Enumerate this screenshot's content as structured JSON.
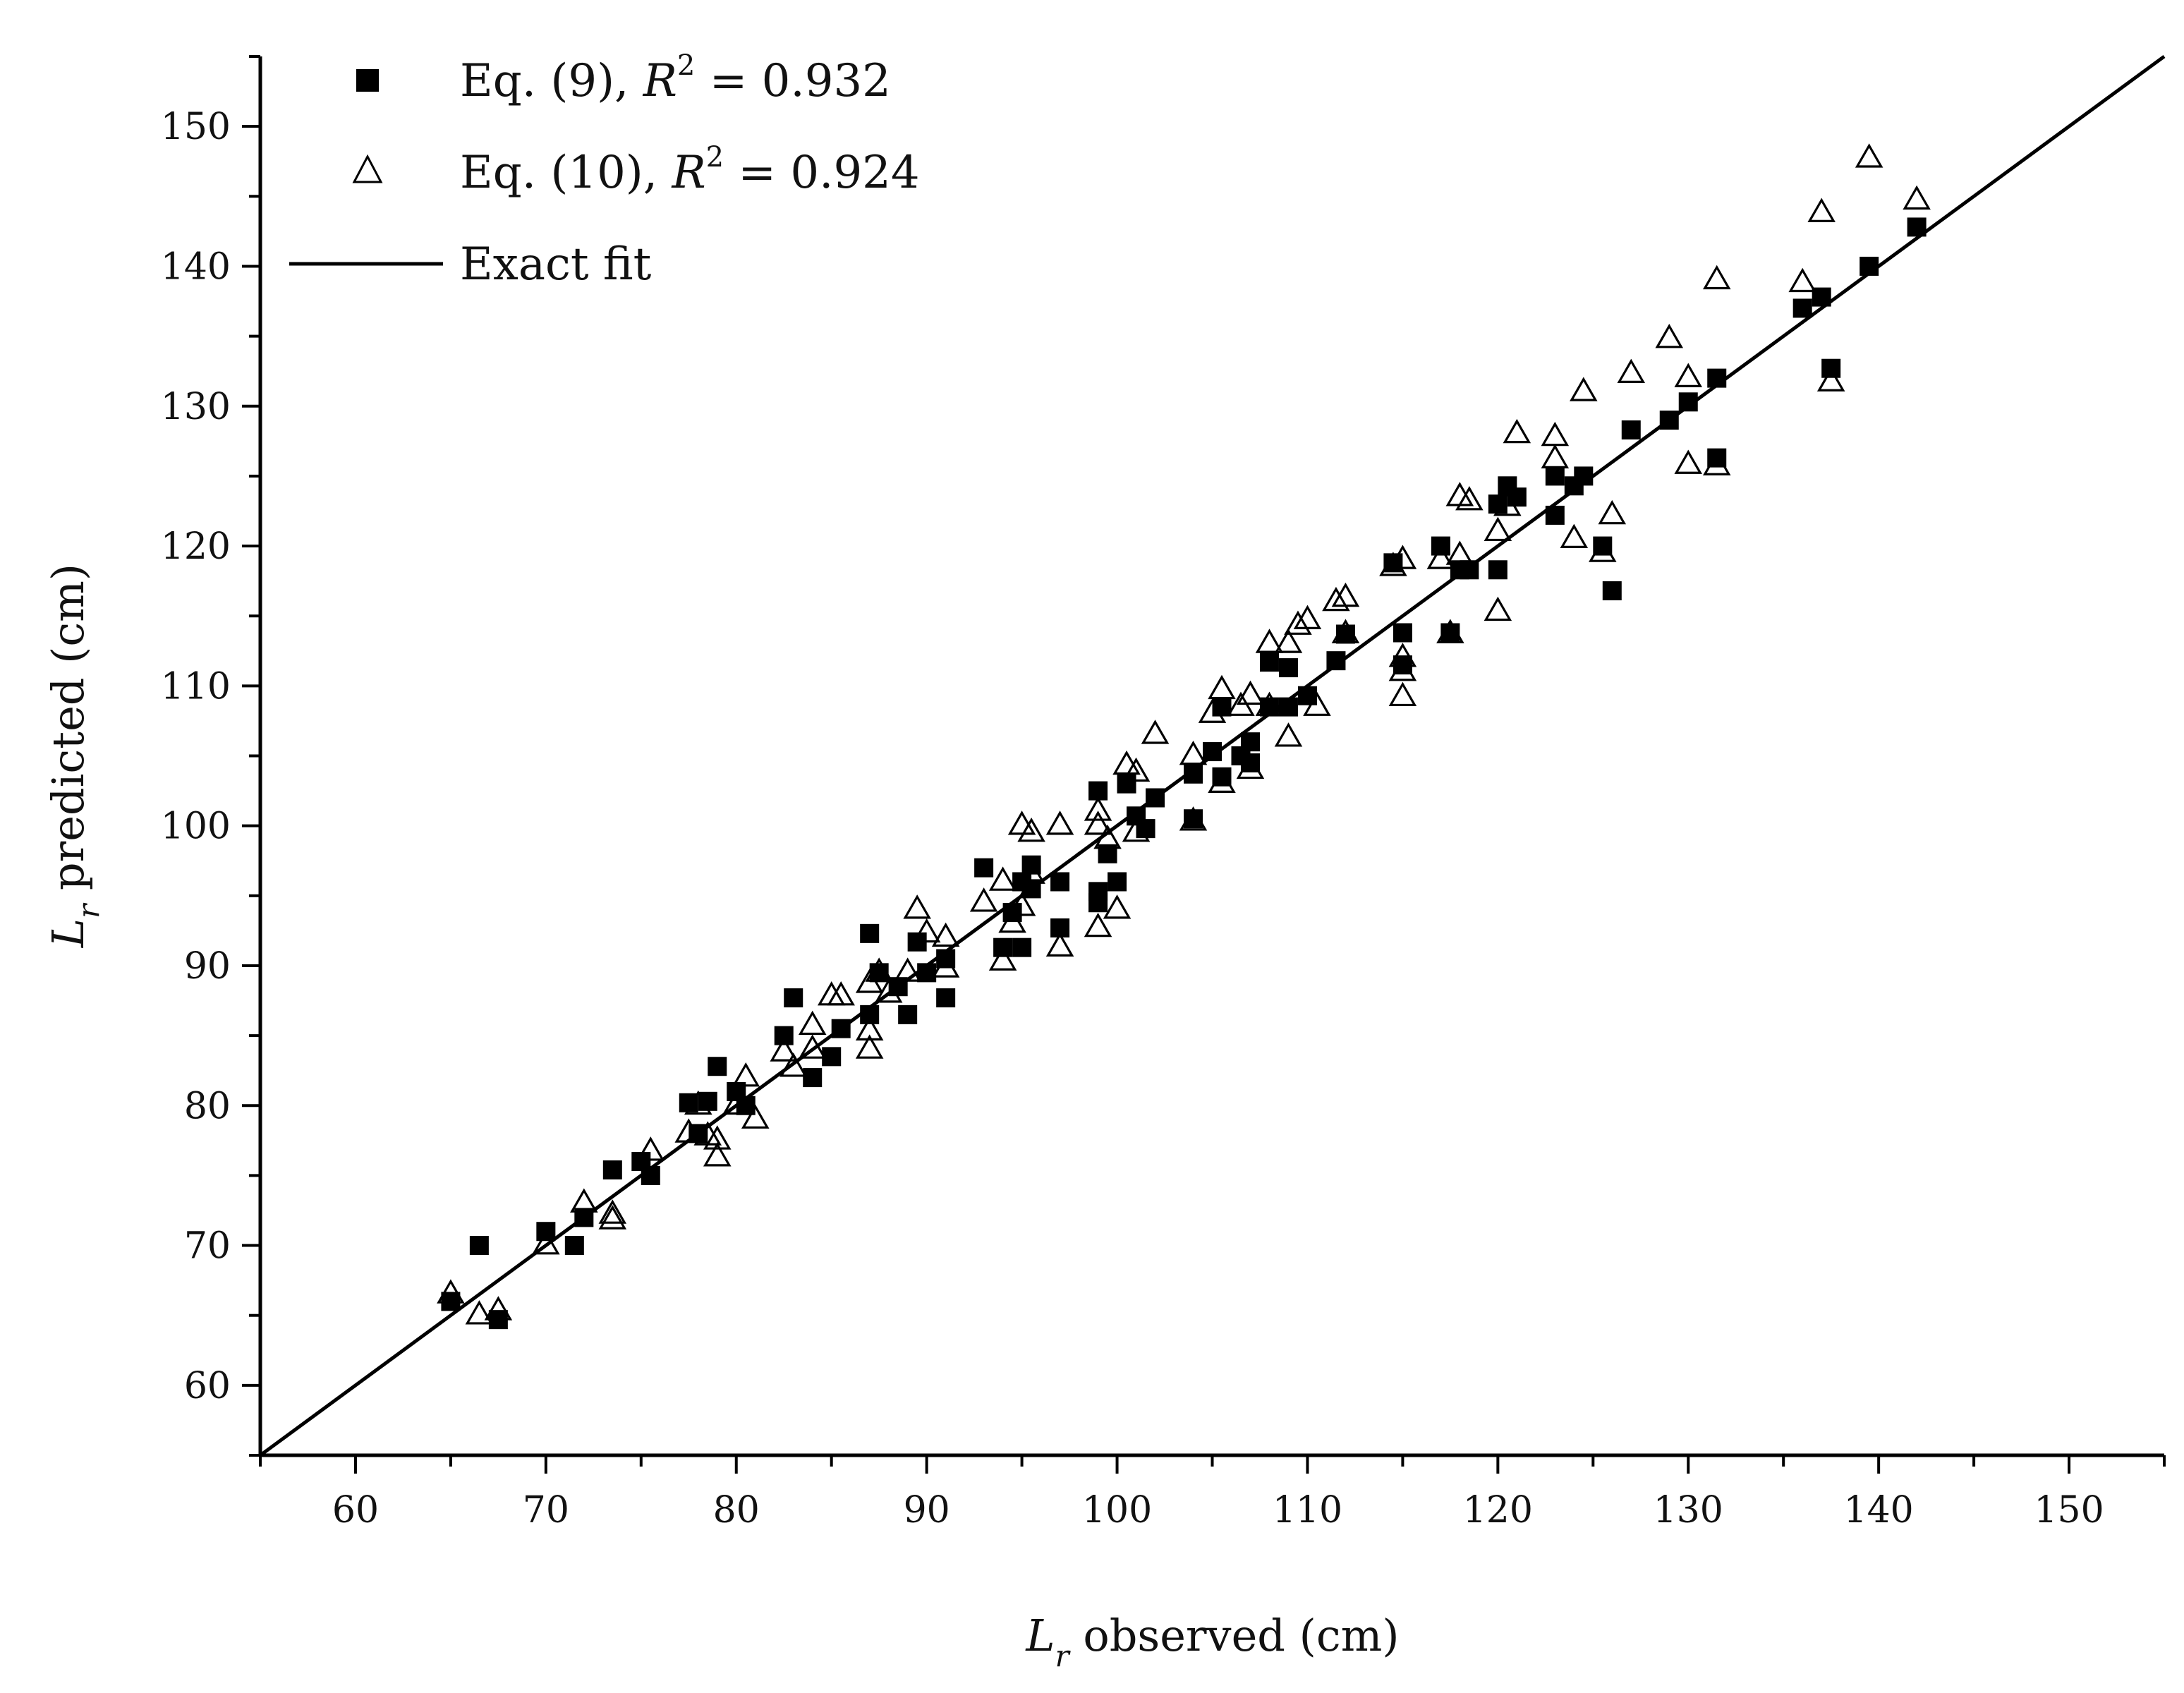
{
  "chart_data": {
    "type": "scatter",
    "title": "",
    "xlabel": {
      "symbol": "L",
      "subscript": "r",
      "text": " observed (cm)"
    },
    "ylabel": {
      "symbol": "L",
      "subscript": "r",
      "text": " predicted (cm)"
    },
    "xlim": [
      55,
      155
    ],
    "ylim": [
      55,
      155
    ],
    "xticks": [
      60,
      70,
      80,
      90,
      100,
      110,
      120,
      130,
      140,
      150
    ],
    "yticks": [
      60,
      70,
      80,
      90,
      100,
      110,
      120,
      130,
      140,
      150
    ],
    "grid": false,
    "legend_position": "top-left",
    "legend": [
      {
        "prefix": "Eq. (9), ",
        "var": "R",
        "sup": "2",
        "suffix": " = 0.932",
        "marker": "filled-square"
      },
      {
        "prefix": "Eq. (10), ",
        "var": "R",
        "sup": "2",
        "suffix": " = 0.924",
        "marker": "open-triangle"
      },
      {
        "prefix": "Exact fit",
        "var": "",
        "sup": "",
        "suffix": "",
        "marker": "line"
      }
    ],
    "colors": {
      "axis": "#000000",
      "marker": "#000000",
      "fill_open": "#ffffff"
    },
    "series": [
      {
        "name": "Eq. (9)",
        "marker": "square",
        "points": [
          [
            65,
            66
          ],
          [
            66.5,
            70
          ],
          [
            67.5,
            64.7
          ],
          [
            70,
            71
          ],
          [
            71.5,
            70
          ],
          [
            72,
            72
          ],
          [
            73.5,
            75.4
          ],
          [
            75,
            76
          ],
          [
            75.5,
            75
          ],
          [
            77.5,
            80.2
          ],
          [
            78,
            78
          ],
          [
            78.5,
            80.3
          ],
          [
            79,
            82.8
          ],
          [
            80,
            81
          ],
          [
            80.5,
            80
          ],
          [
            82.5,
            85
          ],
          [
            83,
            87.7
          ],
          [
            84,
            82
          ],
          [
            85,
            83.5
          ],
          [
            85.5,
            85.5
          ],
          [
            87,
            92.3
          ],
          [
            87,
            86.5
          ],
          [
            87.5,
            89.5
          ],
          [
            88.5,
            88.5
          ],
          [
            89,
            86.5
          ],
          [
            89.5,
            91.7
          ],
          [
            90,
            89.5
          ],
          [
            91,
            90.5
          ],
          [
            91,
            87.7
          ],
          [
            93,
            97
          ],
          [
            94,
            91.3
          ],
          [
            94.5,
            93.8
          ],
          [
            95,
            91.3
          ],
          [
            95,
            96
          ],
          [
            95.5,
            97.2
          ],
          [
            95.5,
            95.5
          ],
          [
            97,
            92.7
          ],
          [
            97,
            96
          ],
          [
            99,
            102.5
          ],
          [
            99,
            95.3
          ],
          [
            99,
            94.5
          ],
          [
            99.5,
            98
          ],
          [
            100,
            96
          ],
          [
            100.5,
            103
          ],
          [
            101,
            100.7
          ],
          [
            101.5,
            99.8
          ],
          [
            102,
            102
          ],
          [
            104,
            103.7
          ],
          [
            104,
            100.5
          ],
          [
            105,
            105.3
          ],
          [
            105.5,
            103.5
          ],
          [
            105.5,
            108.5
          ],
          [
            106.5,
            105
          ],
          [
            107,
            106
          ],
          [
            107,
            104.5
          ],
          [
            108,
            111.7
          ],
          [
            108,
            108.5
          ],
          [
            109,
            111.3
          ],
          [
            109,
            108.5
          ],
          [
            110,
            109.3
          ],
          [
            111.5,
            111.8
          ],
          [
            112,
            113.7
          ],
          [
            114.5,
            118.8
          ],
          [
            115,
            113.8
          ],
          [
            115,
            111.5
          ],
          [
            117,
            120
          ],
          [
            117.5,
            113.8
          ],
          [
            118,
            118.3
          ],
          [
            118.5,
            118.3
          ],
          [
            120,
            123
          ],
          [
            120,
            118.3
          ],
          [
            120.5,
            124.3
          ],
          [
            121,
            123.5
          ],
          [
            123,
            125
          ],
          [
            123,
            122.2
          ],
          [
            124,
            124.3
          ],
          [
            124.5,
            125
          ],
          [
            125.5,
            120
          ],
          [
            126,
            116.8
          ],
          [
            127,
            128.3
          ],
          [
            129,
            129
          ],
          [
            130,
            130.3
          ],
          [
            131.5,
            132
          ],
          [
            131.5,
            126.3
          ],
          [
            136,
            137
          ],
          [
            137,
            137.8
          ],
          [
            137.5,
            132.7
          ],
          [
            139.5,
            140
          ],
          [
            142,
            142.8
          ]
        ]
      },
      {
        "name": "Eq. (10)",
        "marker": "triangle",
        "points": [
          [
            65,
            66.5
          ],
          [
            66.5,
            65
          ],
          [
            67.5,
            65.3
          ],
          [
            70,
            70
          ],
          [
            72,
            73
          ],
          [
            73.5,
            72.2
          ],
          [
            73.5,
            71.8
          ],
          [
            75.5,
            76.7
          ],
          [
            77.5,
            78
          ],
          [
            78,
            80
          ],
          [
            78.5,
            77.8
          ],
          [
            79,
            76.3
          ],
          [
            79,
            77.5
          ],
          [
            80,
            80
          ],
          [
            80.5,
            82
          ],
          [
            81,
            79
          ],
          [
            82.5,
            83.8
          ],
          [
            83,
            82.7
          ],
          [
            84,
            85.7
          ],
          [
            84,
            84
          ],
          [
            85,
            87.8
          ],
          [
            85.5,
            87.8
          ],
          [
            87,
            88.7
          ],
          [
            87,
            85.3
          ],
          [
            87,
            84
          ],
          [
            87.5,
            89.5
          ],
          [
            88,
            88
          ],
          [
            89,
            89.5
          ],
          [
            89.5,
            94
          ],
          [
            90,
            92.3
          ],
          [
            91,
            92
          ],
          [
            91,
            89.8
          ],
          [
            93,
            94.5
          ],
          [
            94,
            96
          ],
          [
            94,
            90.3
          ],
          [
            94.5,
            93
          ],
          [
            95,
            100
          ],
          [
            95,
            94.2
          ],
          [
            95.5,
            99.5
          ],
          [
            95.5,
            96.5
          ],
          [
            97,
            100
          ],
          [
            97,
            91.3
          ],
          [
            99,
            101
          ],
          [
            99,
            100
          ],
          [
            99,
            92.7
          ],
          [
            99.5,
            99
          ],
          [
            100,
            94
          ],
          [
            100.5,
            104.3
          ],
          [
            101,
            103.8
          ],
          [
            101,
            99.5
          ],
          [
            102,
            106.5
          ],
          [
            104,
            105
          ],
          [
            104,
            100.3
          ],
          [
            105,
            108
          ],
          [
            105.5,
            109.7
          ],
          [
            105.5,
            103
          ],
          [
            106.5,
            108.5
          ],
          [
            107,
            109.3
          ],
          [
            107,
            104
          ],
          [
            108,
            113
          ],
          [
            108,
            108.5
          ],
          [
            109,
            113
          ],
          [
            109,
            106.3
          ],
          [
            109.5,
            114.3
          ],
          [
            110,
            114.7
          ],
          [
            110.5,
            108.5
          ],
          [
            111.5,
            116
          ],
          [
            112,
            116.3
          ],
          [
            112,
            113.7
          ],
          [
            114.5,
            118.5
          ],
          [
            115,
            119
          ],
          [
            115,
            112
          ],
          [
            115,
            111
          ],
          [
            115,
            109.2
          ],
          [
            117,
            119
          ],
          [
            117.5,
            113.7
          ],
          [
            118,
            123.5
          ],
          [
            118,
            119.3
          ],
          [
            118.5,
            123.2
          ],
          [
            120,
            121
          ],
          [
            120,
            115.3
          ],
          [
            120.5,
            122.8
          ],
          [
            121,
            128
          ],
          [
            123,
            127.8
          ],
          [
            123,
            126.2
          ],
          [
            124,
            120.5
          ],
          [
            124.5,
            131
          ],
          [
            125.5,
            119.5
          ],
          [
            126,
            122.2
          ],
          [
            127,
            132.3
          ],
          [
            129,
            134.8
          ],
          [
            130,
            132
          ],
          [
            130,
            125.8
          ],
          [
            131.5,
            139
          ],
          [
            131.5,
            125.7
          ],
          [
            136,
            138.8
          ],
          [
            137,
            143.8
          ],
          [
            137.5,
            131.7
          ],
          [
            139.5,
            147.7
          ],
          [
            142,
            144.7
          ]
        ]
      }
    ]
  }
}
